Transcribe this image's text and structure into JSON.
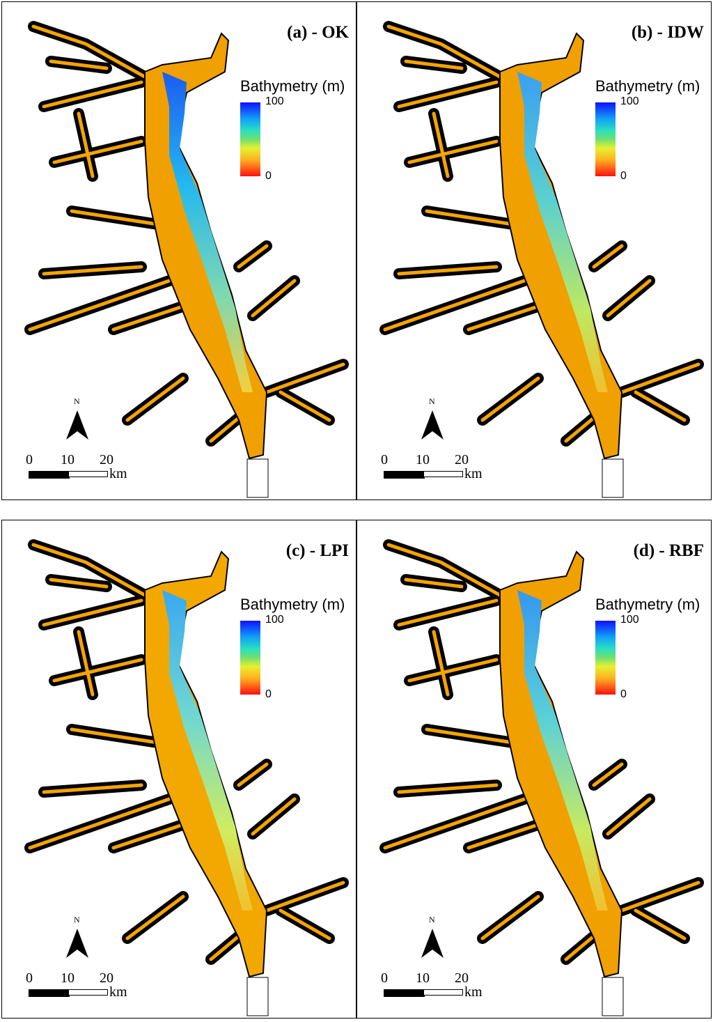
{
  "panels": [
    {
      "title": "(a) - OK"
    },
    {
      "title": "(b) - IDW"
    },
    {
      "title": "(c) - LPI"
    },
    {
      "title": "(d) - RBF"
    }
  ],
  "legend": {
    "title": "Bathymetry (m)",
    "max": "100",
    "min": "0"
  },
  "north_label": "N",
  "scale": {
    "ticks": [
      "0",
      "10",
      "20"
    ],
    "unit": "km"
  },
  "colors": {
    "deep": "#1010ff",
    "mid": "#2ae0c0",
    "shallow": "#ff1010",
    "land_outline": "#000000"
  }
}
